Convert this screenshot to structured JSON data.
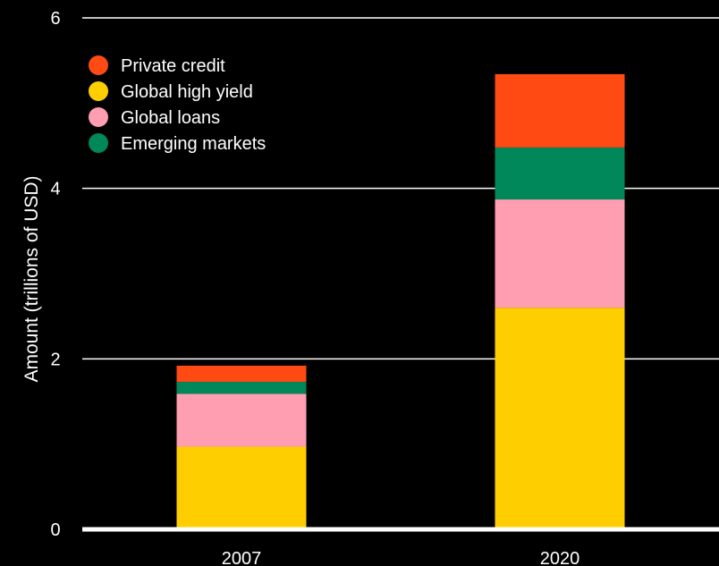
{
  "chart_data": {
    "type": "bar",
    "stacked": true,
    "categories": [
      "2007",
      "2020"
    ],
    "series": [
      {
        "name": "Global high yield",
        "color": "#ffce00",
        "values": [
          0.97,
          2.6
        ]
      },
      {
        "name": "Global loans",
        "color": "#ff9db1",
        "values": [
          0.62,
          1.27
        ]
      },
      {
        "name": "Emerging markets",
        "color": "#00875a",
        "values": [
          0.14,
          0.61
        ]
      },
      {
        "name": "Private credit",
        "color": "#ff4a13",
        "values": [
          0.19,
          0.86
        ]
      }
    ],
    "legend": [
      "Private credit",
      "Global high yield",
      "Global loans",
      "Emerging markets"
    ],
    "ylabel": "Amount (trillions of USD)",
    "xlabel": "",
    "ylim": [
      0,
      6
    ],
    "yticks": [
      0,
      2,
      4,
      6
    ],
    "grid": true,
    "legend_position": "top-left"
  }
}
